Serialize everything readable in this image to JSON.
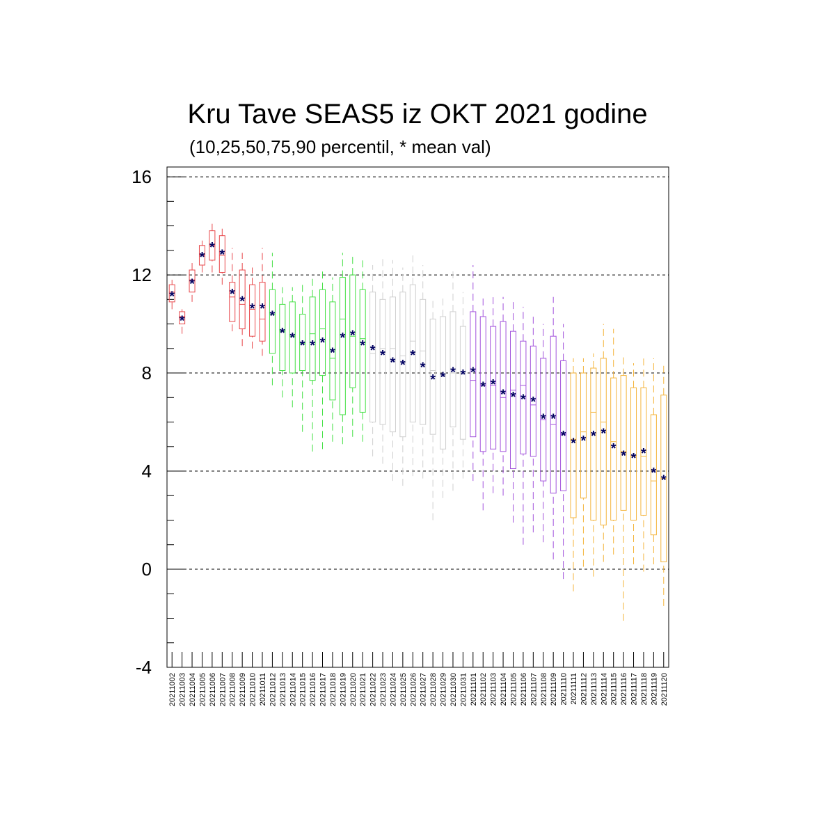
{
  "chart_data": {
    "type": "boxplot",
    "title": "Kru Tave SEAS5 iz OKT 2021 godine",
    "subtitle": "(10,25,50,75,90 percentil, * mean val)",
    "xlabel": "",
    "ylabel": "",
    "ylim": [
      -4,
      16.4
    ],
    "yticks": [
      -4,
      0,
      4,
      8,
      12,
      16
    ],
    "grid": "horizontal dashed at major ticks",
    "colors": {
      "red": "#e8474a",
      "green": "#45e045",
      "gray": "#cfcfcf",
      "purple": "#a252dc",
      "orange": "#f4b43c",
      "mean": "#000060"
    },
    "categories": [
      "20211002",
      "20211003",
      "20211004",
      "20211005",
      "20211006",
      "20211007",
      "20211008",
      "20211009",
      "20211010",
      "20211011",
      "20211012",
      "20211013",
      "20211014",
      "20211015",
      "20211016",
      "20211017",
      "20211018",
      "20211019",
      "20211020",
      "20211021",
      "20211022",
      "20211023",
      "20211024",
      "20211025",
      "20211026",
      "20211027",
      "20211028",
      "20211029",
      "20211030",
      "20211031",
      "20211101",
      "20211102",
      "20211103",
      "20211104",
      "20211105",
      "20211106",
      "20211107",
      "20211108",
      "20211109",
      "20211110",
      "20211111",
      "20211112",
      "20211113",
      "20211114",
      "20211115",
      "20211116",
      "20211117",
      "20211118",
      "20211119",
      "20211120"
    ],
    "boxes": [
      {
        "p10": 10.6,
        "p25": 10.9,
        "p50": 11.3,
        "p75": 11.6,
        "p90": 11.8,
        "mean": 11.2,
        "color": "red"
      },
      {
        "p10": 9.6,
        "p25": 10.0,
        "p50": 10.3,
        "p75": 10.5,
        "p90": 10.6,
        "mean": 10.2,
        "color": "red"
      },
      {
        "p10": 10.9,
        "p25": 11.3,
        "p50": 11.8,
        "p75": 12.2,
        "p90": 12.5,
        "mean": 11.7,
        "color": "red"
      },
      {
        "p10": 12.1,
        "p25": 12.4,
        "p50": 12.8,
        "p75": 13.2,
        "p90": 13.4,
        "mean": 12.8,
        "color": "red"
      },
      {
        "p10": 12.1,
        "p25": 12.6,
        "p50": 13.2,
        "p75": 13.8,
        "p90": 14.2,
        "mean": 13.2,
        "color": "red"
      },
      {
        "p10": 11.6,
        "p25": 12.1,
        "p50": 12.8,
        "p75": 13.6,
        "p90": 14.0,
        "mean": 12.9,
        "color": "red"
      },
      {
        "p10": 9.7,
        "p25": 10.1,
        "p50": 11.1,
        "p75": 11.7,
        "p90": 13.1,
        "mean": 11.3,
        "color": "red"
      },
      {
        "p10": 9.1,
        "p25": 9.8,
        "p50": 10.8,
        "p75": 12.2,
        "p90": 12.9,
        "mean": 11.0,
        "color": "red"
      },
      {
        "p10": 9.0,
        "p25": 9.5,
        "p50": 10.6,
        "p75": 11.6,
        "p90": 12.3,
        "mean": 10.7,
        "color": "red"
      },
      {
        "p10": 8.7,
        "p25": 9.3,
        "p50": 10.2,
        "p75": 11.7,
        "p90": 13.1,
        "mean": 10.7,
        "color": "red"
      },
      {
        "p10": 7.5,
        "p25": 8.8,
        "p50": 10.4,
        "p75": 11.4,
        "p90": 12.9,
        "mean": 10.4,
        "color": "green"
      },
      {
        "p10": 7.0,
        "p25": 8.1,
        "p50": 9.7,
        "p75": 10.8,
        "p90": 11.5,
        "mean": 9.7,
        "color": "green"
      },
      {
        "p10": 6.6,
        "p25": 8.0,
        "p50": 9.5,
        "p75": 10.9,
        "p90": 11.5,
        "mean": 9.5,
        "color": "green"
      },
      {
        "p10": 5.6,
        "p25": 8.1,
        "p50": 9.2,
        "p75": 10.4,
        "p90": 11.7,
        "mean": 9.2,
        "color": "green"
      },
      {
        "p10": 4.8,
        "p25": 7.7,
        "p50": 9.6,
        "p75": 11.1,
        "p90": 11.9,
        "mean": 9.2,
        "color": "green"
      },
      {
        "p10": 4.9,
        "p25": 7.9,
        "p50": 9.8,
        "p75": 11.4,
        "p90": 12.3,
        "mean": 9.3,
        "color": "green"
      },
      {
        "p10": 5.2,
        "p25": 6.9,
        "p50": 8.6,
        "p75": 10.9,
        "p90": 11.9,
        "mean": 8.9,
        "color": "green"
      },
      {
        "p10": 5.1,
        "p25": 6.3,
        "p50": 10.2,
        "p75": 11.9,
        "p90": 12.9,
        "mean": 9.5,
        "color": "green"
      },
      {
        "p10": 5.4,
        "p25": 7.4,
        "p50": 9.5,
        "p75": 12.0,
        "p90": 12.9,
        "mean": 9.6,
        "color": "green"
      },
      {
        "p10": 5.2,
        "p25": 6.4,
        "p50": 9.4,
        "p75": 11.4,
        "p90": 12.6,
        "mean": 9.2,
        "color": "green"
      },
      {
        "p10": 4.6,
        "p25": 6.0,
        "p50": 8.8,
        "p75": 11.3,
        "p90": 12.4,
        "mean": 9.0,
        "color": "gray"
      },
      {
        "p10": 4.3,
        "p25": 5.9,
        "p50": 9.0,
        "p75": 11.0,
        "p90": 12.7,
        "mean": 8.8,
        "color": "gray"
      },
      {
        "p10": 3.6,
        "p25": 5.6,
        "p50": 9.0,
        "p75": 11.1,
        "p90": 12.6,
        "mean": 8.5,
        "color": "gray"
      },
      {
        "p10": 3.4,
        "p25": 5.4,
        "p50": 8.7,
        "p75": 11.3,
        "p90": 12.3,
        "mean": 8.4,
        "color": "gray"
      },
      {
        "p10": 3.8,
        "p25": 6.0,
        "p50": 9.3,
        "p75": 11.6,
        "p90": 12.9,
        "mean": 8.8,
        "color": "gray"
      },
      {
        "p10": 3.7,
        "p25": 5.9,
        "p50": 8.9,
        "p75": 11.0,
        "p90": 12.4,
        "mean": 8.3,
        "color": "gray"
      },
      {
        "p10": 2.0,
        "p25": 5.5,
        "p50": 8.1,
        "p75": 10.2,
        "p90": 11.1,
        "mean": 7.8,
        "color": "gray"
      },
      {
        "p10": 2.9,
        "p25": 4.9,
        "p50": 7.9,
        "p75": 10.3,
        "p90": 11.2,
        "mean": 7.9,
        "color": "gray"
      },
      {
        "p10": 3.2,
        "p25": 5.8,
        "p50": 8.0,
        "p75": 10.5,
        "p90": 12.3,
        "mean": 8.1,
        "color": "gray"
      },
      {
        "p10": 3.7,
        "p25": 5.3,
        "p50": 8.0,
        "p75": 9.9,
        "p90": 11.3,
        "mean": 8.0,
        "color": "gray"
      },
      {
        "p10": 3.6,
        "p25": 5.4,
        "p50": 7.7,
        "p75": 10.5,
        "p90": 12.4,
        "mean": 8.1,
        "color": "purple"
      },
      {
        "p10": 2.4,
        "p25": 4.8,
        "p50": 7.5,
        "p75": 10.3,
        "p90": 11.1,
        "mean": 7.5,
        "color": "purple"
      },
      {
        "p10": 3.1,
        "p25": 4.9,
        "p50": 7.5,
        "p75": 9.9,
        "p90": 11.1,
        "mean": 7.6,
        "color": "purple"
      },
      {
        "p10": 3.0,
        "p25": 4.8,
        "p50": 7.0,
        "p75": 10.1,
        "p90": 11.1,
        "mean": 7.2,
        "color": "purple"
      },
      {
        "p10": 1.9,
        "p25": 4.1,
        "p50": 7.3,
        "p75": 9.7,
        "p90": 11.0,
        "mean": 7.1,
        "color": "purple"
      },
      {
        "p10": 1.0,
        "p25": 4.7,
        "p50": 7.5,
        "p75": 9.3,
        "p90": 10.7,
        "mean": 7.0,
        "color": "purple"
      },
      {
        "p10": 1.5,
        "p25": 4.6,
        "p50": 6.7,
        "p75": 9.1,
        "p90": 10.3,
        "mean": 6.9,
        "color": "purple"
      },
      {
        "p10": 1.1,
        "p25": 3.6,
        "p50": 6.1,
        "p75": 8.6,
        "p90": 10.0,
        "mean": 6.2,
        "color": "purple"
      },
      {
        "p10": 0.4,
        "p25": 3.1,
        "p50": 5.9,
        "p75": 9.5,
        "p90": 11.1,
        "mean": 6.2,
        "color": "purple"
      },
      {
        "p10": -0.4,
        "p25": 3.2,
        "p50": 5.5,
        "p75": 8.5,
        "p90": 10.0,
        "mean": 5.5,
        "color": "purple"
      },
      {
        "p10": -0.9,
        "p25": 2.1,
        "p50": 5.3,
        "p75": 8.0,
        "p90": 8.6,
        "mean": 5.2,
        "color": "orange"
      },
      {
        "p10": 0.1,
        "p25": 2.9,
        "p50": 5.6,
        "p75": 8.0,
        "p90": 8.6,
        "mean": 5.3,
        "color": "orange"
      },
      {
        "p10": -0.3,
        "p25": 2.0,
        "p50": 6.4,
        "p75": 8.2,
        "p90": 8.8,
        "mean": 5.5,
        "color": "orange"
      },
      {
        "p10": 0.3,
        "p25": 1.8,
        "p50": 6.0,
        "p75": 8.6,
        "p90": 10.0,
        "mean": 5.6,
        "color": "orange"
      },
      {
        "p10": 0.6,
        "p25": 2.0,
        "p50": 5.2,
        "p75": 7.8,
        "p90": 9.8,
        "mean": 5.0,
        "color": "orange"
      },
      {
        "p10": -2.1,
        "p25": 2.4,
        "p50": 4.8,
        "p75": 7.9,
        "p90": 8.7,
        "mean": 4.7,
        "color": "orange"
      },
      {
        "p10": 0.2,
        "p25": 2.0,
        "p50": 4.6,
        "p75": 7.4,
        "p90": 8.4,
        "mean": 4.6,
        "color": "orange"
      },
      {
        "p10": -0.1,
        "p25": 2.2,
        "p50": 4.6,
        "p75": 7.4,
        "p90": 8.6,
        "mean": 4.8,
        "color": "orange"
      },
      {
        "p10": 0.2,
        "p25": 1.4,
        "p50": 3.6,
        "p75": 6.3,
        "p90": 8.6,
        "mean": 4.0,
        "color": "orange"
      },
      {
        "p10": -1.5,
        "p25": 0.3,
        "p50": 3.7,
        "p75": 7.1,
        "p90": 8.4,
        "mean": 3.7,
        "color": "orange"
      }
    ]
  }
}
